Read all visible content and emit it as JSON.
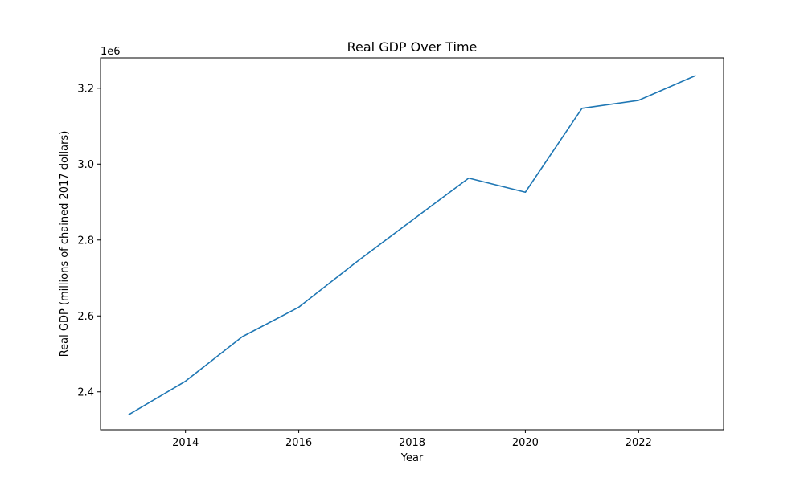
{
  "chart_data": {
    "type": "line",
    "title": "Real GDP Over Time",
    "xlabel": "Year",
    "ylabel": "Real GDP (millions of chained 2017 dollars)",
    "offset_label": "1e6",
    "xlim": [
      2012.5,
      2023.5
    ],
    "ylim": [
      2300000,
      3280000
    ],
    "x_ticks": [
      2014,
      2016,
      2018,
      2020,
      2022
    ],
    "x_tick_labels": [
      "2014",
      "2016",
      "2018",
      "2020",
      "2022"
    ],
    "y_ticks": [
      2400000,
      2600000,
      2800000,
      3000000,
      3200000
    ],
    "y_tick_labels": [
      "2.4",
      "2.6",
      "2.8",
      "3.0",
      "3.2"
    ],
    "grid": false,
    "series": [
      {
        "color": "#1f77b4",
        "x": [
          2013,
          2014,
          2015,
          2016,
          2017,
          2018,
          2019,
          2020,
          2021,
          2022,
          2023
        ],
        "values": [
          2340000,
          2428000,
          2545000,
          2623000,
          2740000,
          2852000,
          2963000,
          2926000,
          3147000,
          3168000,
          3233000
        ]
      }
    ]
  }
}
